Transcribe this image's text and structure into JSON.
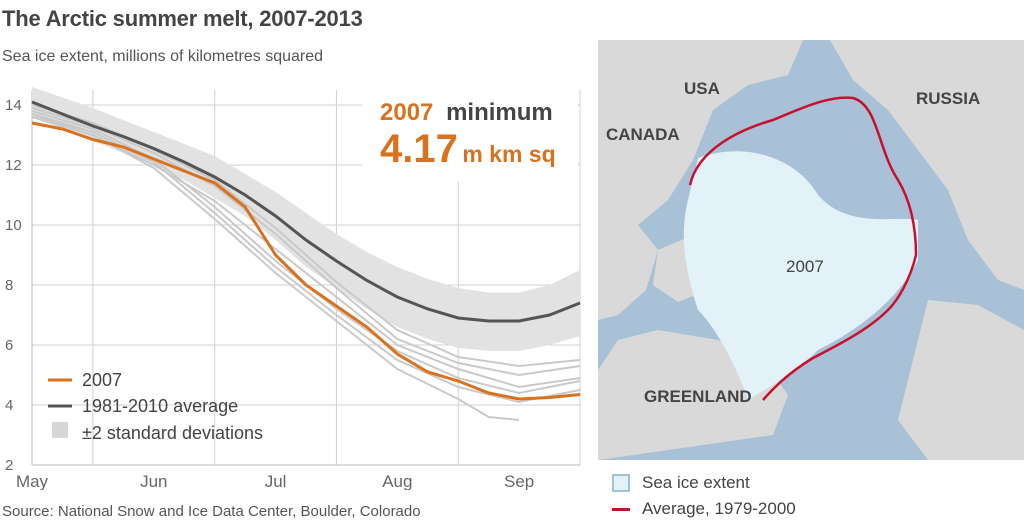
{
  "header": {
    "title": "The Arctic summer melt, 2007-2013",
    "subtitle": "Sea ice extent, millions of kilometres squared"
  },
  "source": "Source: National Snow and Ice Data Center, Boulder, Colorado",
  "callout": {
    "year": "2007",
    "label": "minimum",
    "value": "4.17",
    "unit": "m km sq"
  },
  "colors": {
    "y2007": "#d9721f",
    "average": "#555555",
    "band": "#e2e2e2",
    "others": "#c9c9c9",
    "grid": "#d0d0d0",
    "ice": "#e3f2f9",
    "water": "#a9c1d6",
    "land": "#d9d9d9",
    "avg_line": "#c8102e"
  },
  "chart_data": {
    "type": "line",
    "title": "The Arctic summer melt, 2007-2013",
    "ylabel": "Sea ice extent, millions of kilometres squared",
    "categories": [
      "May",
      "Jun",
      "Jul",
      "Aug",
      "Sep"
    ],
    "yticks": [
      2,
      4,
      6,
      8,
      10,
      12,
      14
    ],
    "ylim": [
      2,
      14.5
    ],
    "xlim": [
      0,
      4.5
    ],
    "grid": true,
    "legend_position": "bottom-left",
    "legend": [
      "2007",
      "1981-2010 average",
      "±2 standard deviations"
    ],
    "series": [
      {
        "name": "2007",
        "x": [
          0,
          0.25,
          0.5,
          0.75,
          1,
          1.25,
          1.5,
          1.75,
          2,
          2.25,
          2.5,
          2.75,
          3,
          3.25,
          3.5,
          3.75,
          4,
          4.25,
          4.5
        ],
        "values": [
          13.4,
          13.2,
          12.85,
          12.6,
          12.2,
          11.8,
          11.4,
          10.6,
          9.0,
          8.0,
          7.3,
          6.6,
          5.7,
          5.1,
          4.8,
          4.4,
          4.2,
          4.25,
          4.35
        ]
      },
      {
        "name": "1981-2010 average",
        "x": [
          0,
          0.25,
          0.5,
          0.75,
          1,
          1.25,
          1.5,
          1.75,
          2,
          2.25,
          2.5,
          2.75,
          3,
          3.25,
          3.5,
          3.75,
          4,
          4.25,
          4.5
        ],
        "values": [
          14.1,
          13.7,
          13.3,
          12.95,
          12.55,
          12.1,
          11.6,
          11.0,
          10.3,
          9.5,
          8.8,
          8.15,
          7.6,
          7.2,
          6.9,
          6.8,
          6.8,
          7.0,
          7.4
        ]
      },
      {
        "name": "±2 standard deviations",
        "x": [
          0,
          0.25,
          0.5,
          0.75,
          1,
          1.25,
          1.5,
          1.75,
          2,
          2.25,
          2.5,
          2.75,
          3,
          3.25,
          3.5,
          3.75,
          4,
          4.25,
          4.5
        ],
        "upper": [
          14.6,
          14.25,
          13.9,
          13.5,
          13.1,
          12.7,
          12.3,
          11.7,
          11.1,
          10.4,
          9.7,
          9.1,
          8.6,
          8.2,
          7.9,
          7.75,
          7.75,
          8.0,
          8.5
        ],
        "lower": [
          13.6,
          13.2,
          12.8,
          12.4,
          12.0,
          11.5,
          10.9,
          10.3,
          9.5,
          8.6,
          7.9,
          7.2,
          6.6,
          6.2,
          5.9,
          5.8,
          5.8,
          6.0,
          6.3
        ]
      }
    ],
    "other_years": [
      {
        "x": [
          0,
          0.5,
          1,
          1.5,
          2,
          2.5,
          3,
          3.5,
          4,
          4.5
        ],
        "values": [
          13.9,
          13.3,
          12.4,
          11.3,
          9.7,
          7.9,
          6.2,
          5.4,
          5.0,
          5.3
        ]
      },
      {
        "x": [
          0,
          0.5,
          1,
          1.5,
          2,
          2.5,
          3,
          3.5,
          4,
          4.5
        ],
        "values": [
          13.6,
          13.0,
          12.0,
          10.8,
          9.2,
          7.6,
          6.0,
          5.2,
          4.6,
          4.9
        ]
      },
      {
        "x": [
          0,
          0.5,
          1,
          1.5,
          2,
          2.5,
          3,
          3.5,
          4,
          4.5
        ],
        "values": [
          13.8,
          13.2,
          12.2,
          10.6,
          8.8,
          7.2,
          5.8,
          4.9,
          4.4,
          4.8
        ]
      },
      {
        "x": [
          0,
          0.5,
          1,
          1.5,
          2,
          2.5,
          3,
          3.5,
          4,
          4.5
        ],
        "values": [
          14.0,
          13.4,
          12.5,
          11.5,
          9.9,
          8.1,
          6.5,
          5.6,
          5.3,
          5.5
        ]
      },
      {
        "x": [
          0,
          0.5,
          1,
          1.5,
          2,
          2.5,
          3,
          3.5,
          4,
          4.5
        ],
        "values": [
          13.7,
          13.1,
          12.1,
          10.4,
          8.6,
          7.0,
          5.5,
          4.6,
          4.1,
          4.5
        ]
      },
      {
        "x": [
          0,
          0.5,
          1,
          1.5,
          2,
          2.5,
          3,
          3.5,
          3.75,
          4.0
        ],
        "values": [
          13.7,
          13.0,
          11.9,
          10.2,
          8.4,
          6.8,
          5.2,
          4.2,
          3.6,
          3.5
        ]
      }
    ]
  },
  "map": {
    "labels": {
      "usa": "USA",
      "russia": "RUSSIA",
      "canada": "CANADA",
      "greenland": "GREENLAND",
      "year": "2007"
    },
    "legend": {
      "ice": "Sea ice extent",
      "average": "Average, 1979-2000"
    }
  }
}
